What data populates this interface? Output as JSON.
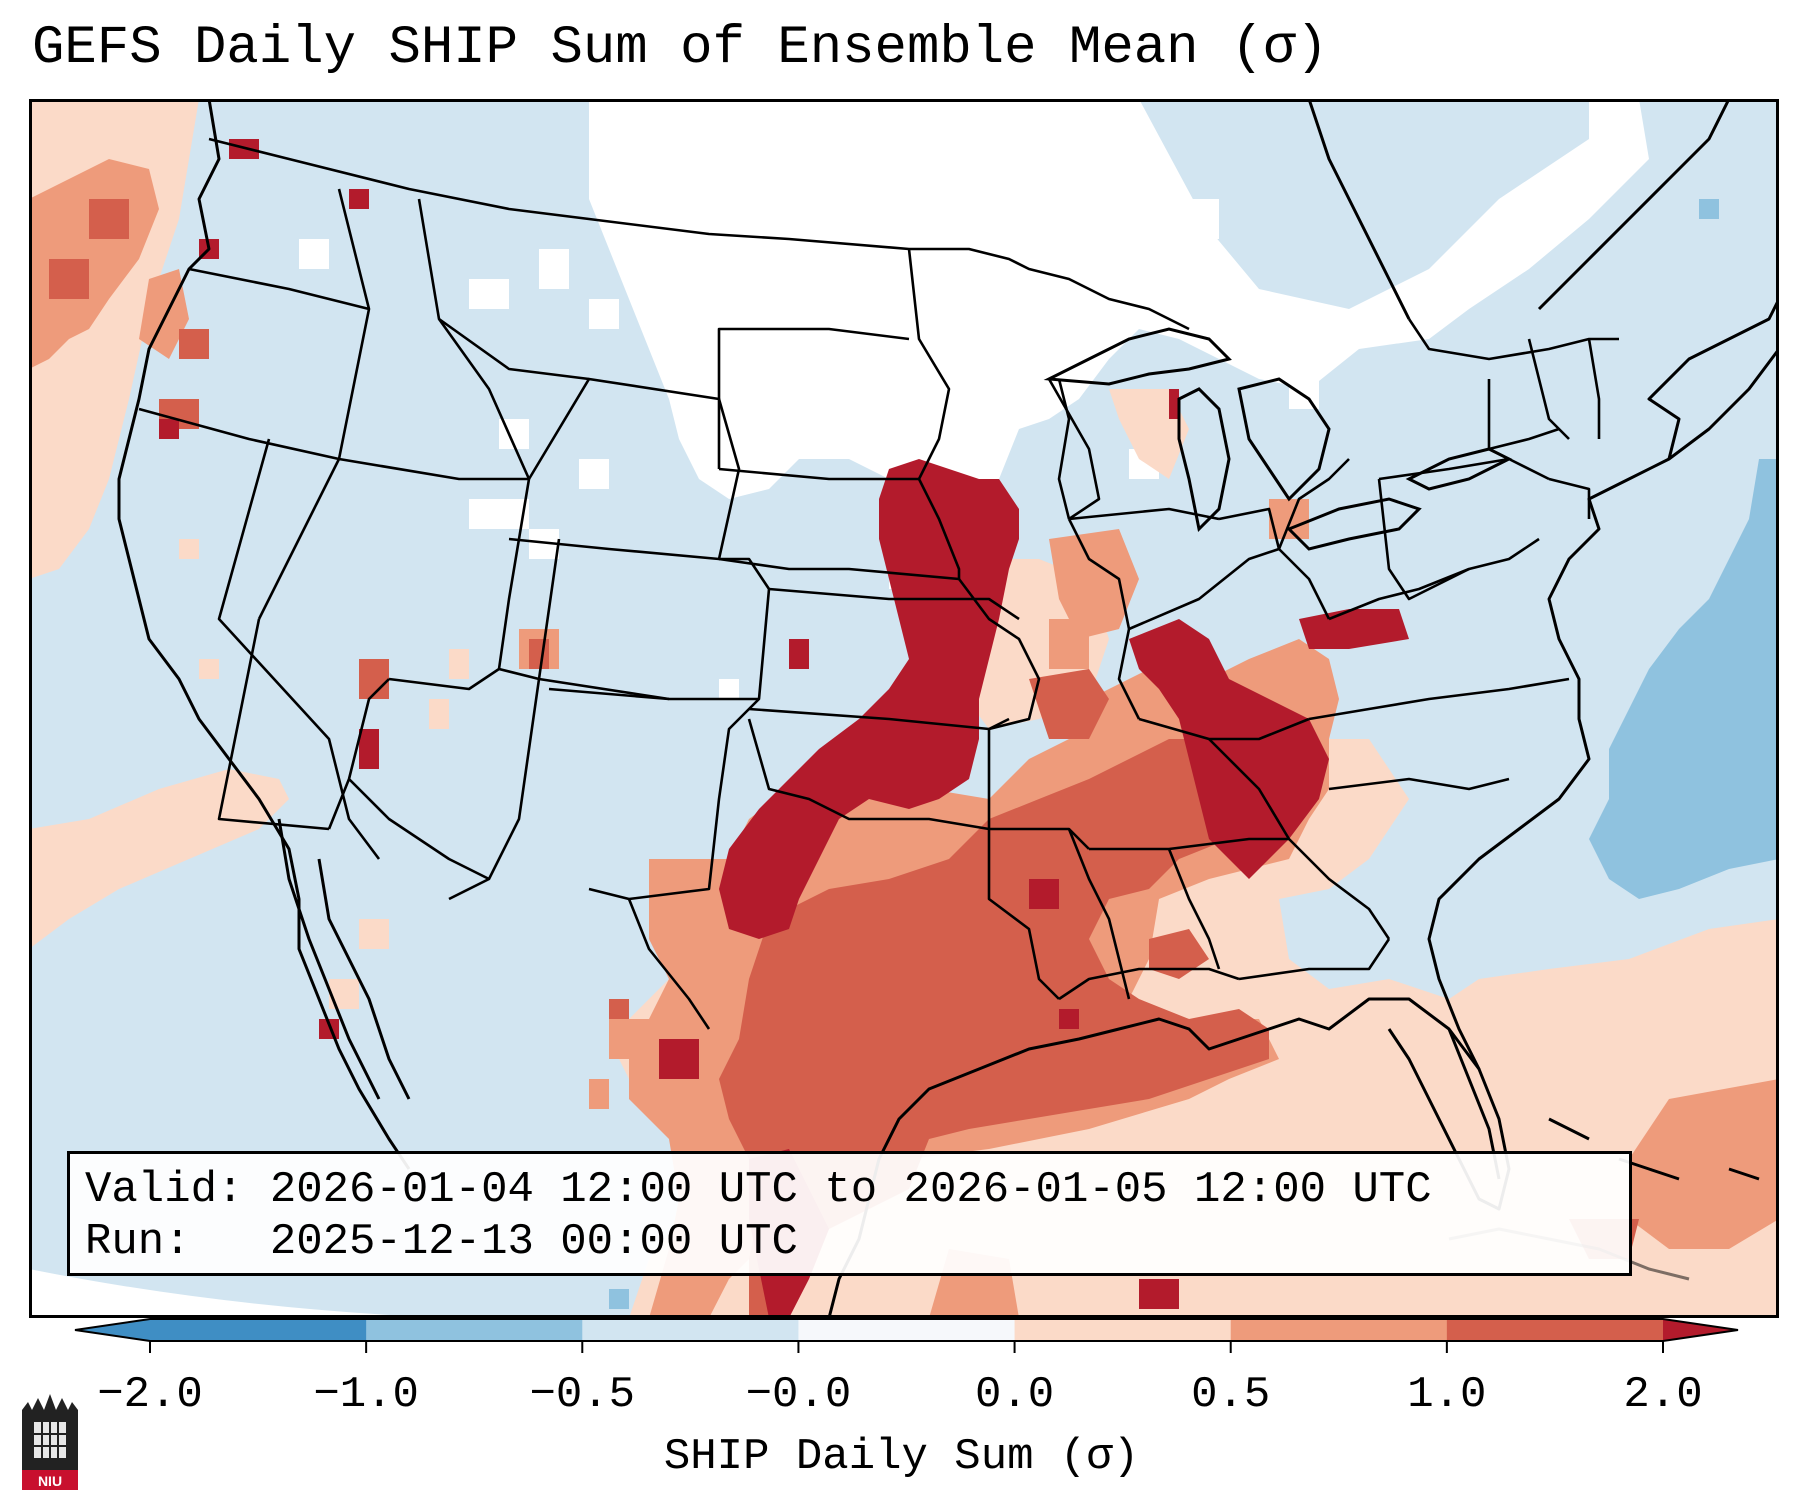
{
  "title": "GEFS Daily SHIP Sum of Ensemble Mean (σ)",
  "info": {
    "valid_line": "Valid: 2026-01-04 12:00 UTC to 2026-01-05 12:00 UTC",
    "run_line": "Run:   2025-12-13 00:00 UTC"
  },
  "colorbar": {
    "label": "SHIP Daily Sum (σ)",
    "tick_labels": [
      "−2.0",
      "−1.0",
      "−0.5",
      "−0.0",
      "0.0",
      "0.5",
      "1.0",
      "2.0"
    ],
    "colors": [
      "#3f8ec4",
      "#8fc2df",
      "#d2e5f1",
      "#f6f8fb",
      "#fbdac8",
      "#ee9b7b",
      "#d45f4c",
      "#b31b2c"
    ],
    "extend": "both"
  },
  "logo": {
    "text": "NIU"
  },
  "colors": {
    "ocean": "#d2e5f1",
    "neutral": "#ffffff",
    "land_negative": "#d2e5f1",
    "strong_negative": "#8fc2df",
    "weak_positive": "#fbdac8",
    "moderate_positive": "#ee9b7b",
    "high_positive": "#d45f4c",
    "extreme_positive": "#b31b2c"
  }
}
